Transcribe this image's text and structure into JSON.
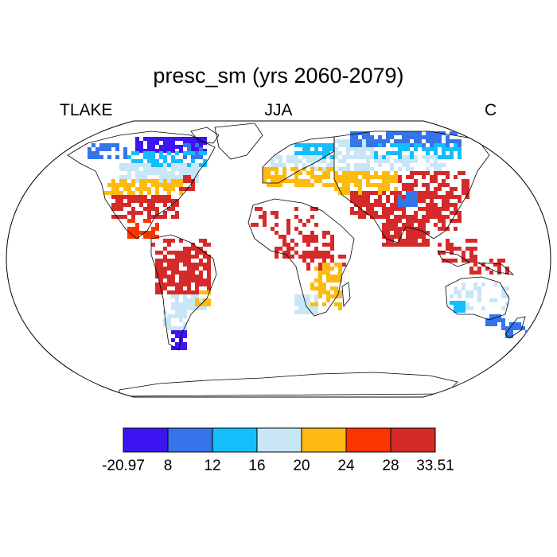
{
  "title": "presc_sm (yrs 2060-2079)",
  "subtitle": {
    "left": "TLAKE",
    "center": "JJA",
    "right": "C"
  },
  "colorbar": {
    "colors": [
      "#3f14f2",
      "#3575e9",
      "#14befc",
      "#c8e6f6",
      "#fdba10",
      "#fb3502",
      "#d42a2a"
    ],
    "labels": [
      "-20.97",
      "8",
      "12",
      "16",
      "20",
      "24",
      "28",
      "33.51"
    ]
  },
  "map": {
    "projection": "robinson",
    "ocean_color": "#ffffff",
    "outline_color": "#000000"
  }
}
